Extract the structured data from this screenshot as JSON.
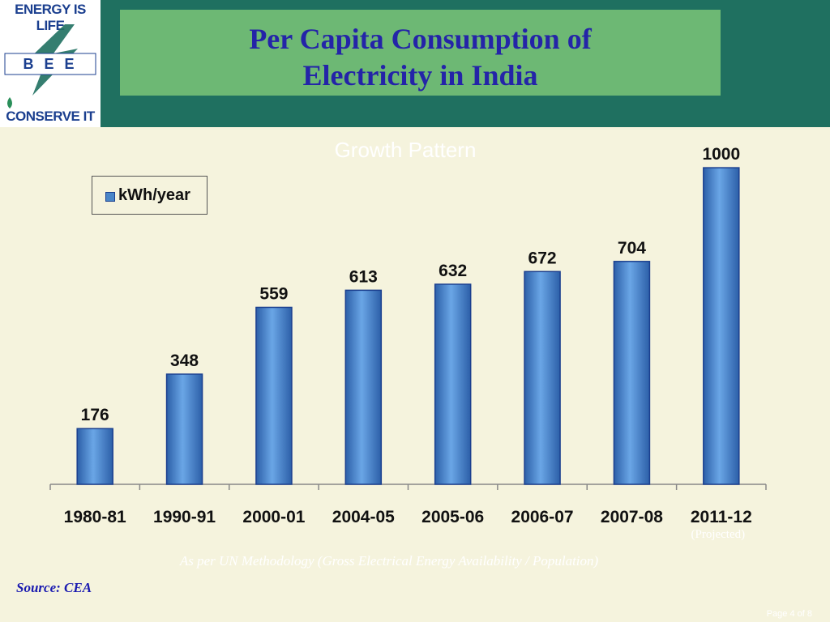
{
  "logo": {
    "top_text": "ENERGY IS LIFE",
    "middle_text": "B E E",
    "bottom_text": "CONSERVE IT"
  },
  "title": {
    "line1": "Per Capita Consumption of",
    "line2": "Electricity in India"
  },
  "subtitle": "Growth Pattern",
  "chart_data": {
    "type": "bar",
    "categories": [
      "1980-81",
      "1990-91",
      "2000-01",
      "2004-05",
      "2005-06",
      "2006-07",
      "2007-08",
      "2011-12"
    ],
    "category_notes": [
      "",
      "",
      "",
      "",
      "",
      "",
      "",
      "(Projected)"
    ],
    "series": [
      {
        "name": "kWh/year",
        "values": [
          176,
          348,
          559,
          613,
          632,
          672,
          704,
          1000
        ]
      }
    ],
    "legend": {
      "label": "kWh/year",
      "position": "top-left"
    },
    "ylim": [
      0,
      1100
    ],
    "grid": false,
    "colors": {
      "bar": "#4a86c8",
      "bar_edge": "#1b3f8f"
    }
  },
  "footnote": "As per UN Methodology (Gross Electrical Energy Availability / Population)",
  "source": "Source: CEA",
  "page_number": "Page 4 of 8",
  "colors": {
    "header_band": "#1f7060",
    "title_box": "#6db874",
    "title_text": "#2424a8",
    "background": "#f5f3dd"
  }
}
